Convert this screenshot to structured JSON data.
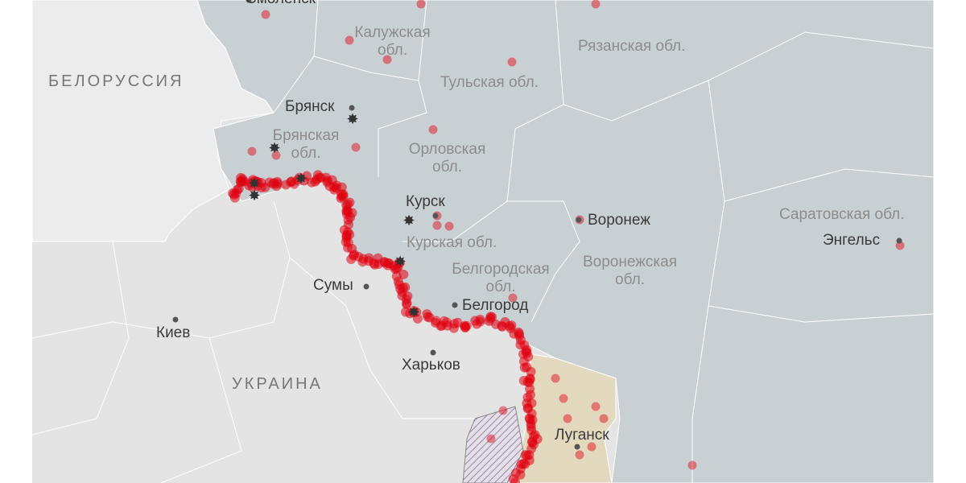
{
  "colors": {
    "russia": "#c9d0d4",
    "neighbors": "#e4e4e4",
    "belarus": "#ececec",
    "lnr": "#e3d9bf",
    "strike": "#e0000f",
    "city_dot": "#555555"
  },
  "countries": {
    "belarus": "БЕЛОРУССИЯ",
    "ukraine": "УКРАИНА"
  },
  "regions": {
    "kaluga": "Калужская обл.",
    "ryazan": "Рязанская обл.",
    "tula": "Тульская обл.",
    "bryansk": "Брянская обл.",
    "orel": "Орловская обл.",
    "kursk": "Курская обл.",
    "belgorod": "Белгородская обл.",
    "voronezh": "Воронежская обл.",
    "saratov": "Саратовская обл."
  },
  "cities": {
    "smolensk": "Смоленск",
    "bryansk": "Брянск",
    "kursk": "Курск",
    "voronezh": "Воронеж",
    "engels": "Энгельс",
    "belgorod": "Белгород",
    "sumy": "Сумы",
    "kiev": "Киев",
    "kharkov": "Харьков",
    "lugansk": "Луганск"
  },
  "icons": {
    "strike": "explosion-icon",
    "city": "city-dot-icon",
    "occupied": "hatched-area"
  }
}
